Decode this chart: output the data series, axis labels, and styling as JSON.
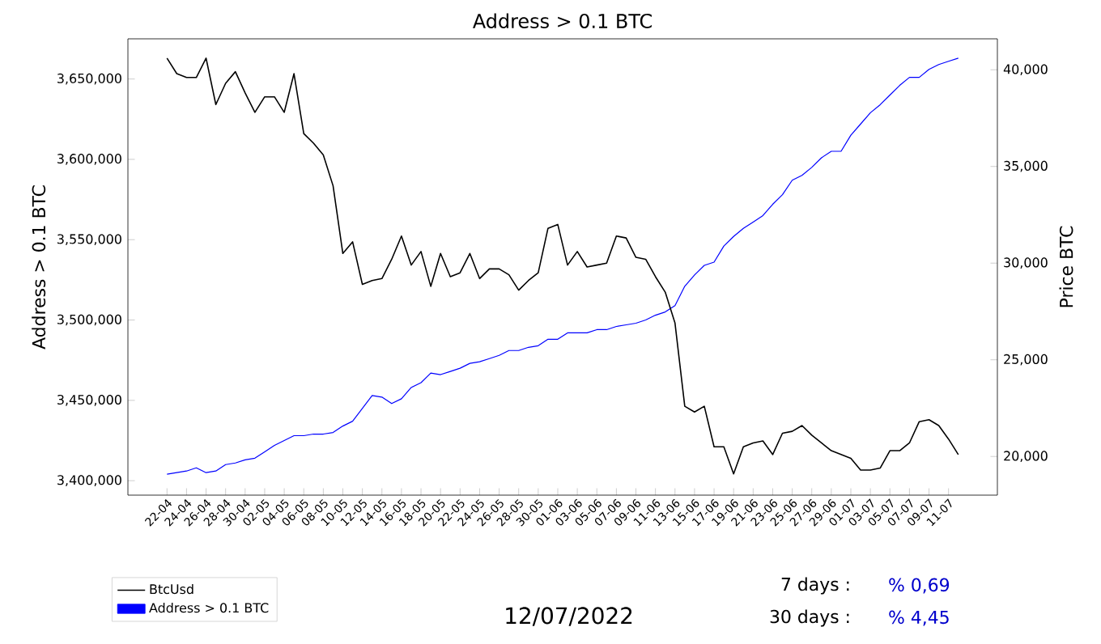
{
  "chart_data": {
    "type": "line",
    "title": "Address > 0.1 BTC",
    "ylabel": "Address > 0.1 BTC",
    "y2label": "Price BTC",
    "categories": [
      "22-04",
      null,
      "24-04",
      null,
      "26-04",
      null,
      "28-04",
      null,
      "30-04",
      null,
      "02-05",
      null,
      "04-05",
      null,
      "06-05",
      null,
      "08-05",
      null,
      "10-05",
      null,
      "12-05",
      null,
      "14-05",
      null,
      "16-05",
      null,
      "18-05",
      null,
      "20-05",
      null,
      "22-05",
      null,
      "24-05",
      null,
      "26-05",
      null,
      "28-05",
      null,
      "30-05",
      null,
      "01-06",
      null,
      "03-06",
      null,
      "05-06",
      null,
      "07-06",
      null,
      "09-06",
      null,
      "11-06",
      null,
      "13-06",
      null,
      "15-06",
      null,
      "17-06",
      null,
      "19-06",
      null,
      "21-06",
      null,
      "23-06",
      null,
      "25-06",
      null,
      "27-06",
      null,
      "29-06",
      null,
      "01-07",
      null,
      "03-07",
      null,
      "05-07",
      null,
      "07-07",
      null,
      "09-07",
      null,
      "11-07",
      null
    ],
    "series": [
      {
        "name": "BtcUsd",
        "color": "#000000",
        "axis": "y2",
        "values": [
          40600,
          39800,
          39600,
          39600,
          40600,
          38200,
          39300,
          39900,
          38800,
          37800,
          38600,
          38600,
          37800,
          39800,
          36700,
          36200,
          35600,
          34000,
          30500,
          31100,
          28900,
          29100,
          29200,
          30200,
          31400,
          29900,
          30600,
          28800,
          30500,
          29300,
          29500,
          30500,
          29200,
          29700,
          29700,
          29400,
          28600,
          29100,
          29500,
          31800,
          32000,
          29900,
          30600,
          29800,
          29900,
          30000,
          31400,
          31300,
          30300,
          30200,
          29300,
          28500,
          26900,
          22600,
          22300,
          22600,
          20500,
          20500,
          19100,
          20500,
          20700,
          20800,
          20100,
          21200,
          21300,
          21600,
          21100,
          20700,
          20300,
          20100,
          19900,
          19300,
          19300,
          19400,
          20300,
          20300,
          20700,
          21800,
          21900,
          21600,
          20900,
          20100
        ]
      },
      {
        "name": "Address > 0.1 BTC",
        "color": "#0000ff",
        "axis": "y",
        "values": [
          3404000,
          3405000,
          3406000,
          3408000,
          3405000,
          3406000,
          3410000,
          3411000,
          3413000,
          3414000,
          3418000,
          3422000,
          3425000,
          3428000,
          3428000,
          3429000,
          3429000,
          3430000,
          3434000,
          3437000,
          3445000,
          3453000,
          3452000,
          3448000,
          3451000,
          3458000,
          3461000,
          3467000,
          3466000,
          3468000,
          3470000,
          3473000,
          3474000,
          3476000,
          3478000,
          3481000,
          3481000,
          3483000,
          3484000,
          3488000,
          3488000,
          3492000,
          3492000,
          3492000,
          3494000,
          3494000,
          3496000,
          3497000,
          3498000,
          3500000,
          3503000,
          3505000,
          3509000,
          3521000,
          3528000,
          3534000,
          3536000,
          3546000,
          3552000,
          3557000,
          3561000,
          3565000,
          3572000,
          3578000,
          3587000,
          3590000,
          3595000,
          3601000,
          3605000,
          3605000,
          3615000,
          3622000,
          3629000,
          3634000,
          3640000,
          3646000,
          3651000,
          3651000,
          3656000,
          3659000,
          3661000,
          3663000
        ]
      }
    ],
    "ylim": [
      3391000,
      3675000
    ],
    "yticks": [
      {
        "value": 3400000,
        "label": "3,400,000"
      },
      {
        "value": 3450000,
        "label": "3,450,000"
      },
      {
        "value": 3500000,
        "label": "3,500,000"
      },
      {
        "value": 3550000,
        "label": "3,550,000"
      },
      {
        "value": 3600000,
        "label": "3,600,000"
      },
      {
        "value": 3650000,
        "label": "3,650,000"
      }
    ],
    "y2lim": [
      18000,
      41600
    ],
    "y2ticks": [
      {
        "value": 20000,
        "label": "20,000"
      },
      {
        "value": 25000,
        "label": "25,000"
      },
      {
        "value": 30000,
        "label": "30,000"
      },
      {
        "value": 35000,
        "label": "35,000"
      },
      {
        "value": 40000,
        "label": "40,000"
      }
    ],
    "legend": "bottom left",
    "grid": false,
    "marker": "none",
    "line_style": "solid",
    "annotations": [
      "12/07/2022",
      "7 days :",
      "% 0,69",
      "30 days :",
      "% 4,45"
    ]
  }
}
